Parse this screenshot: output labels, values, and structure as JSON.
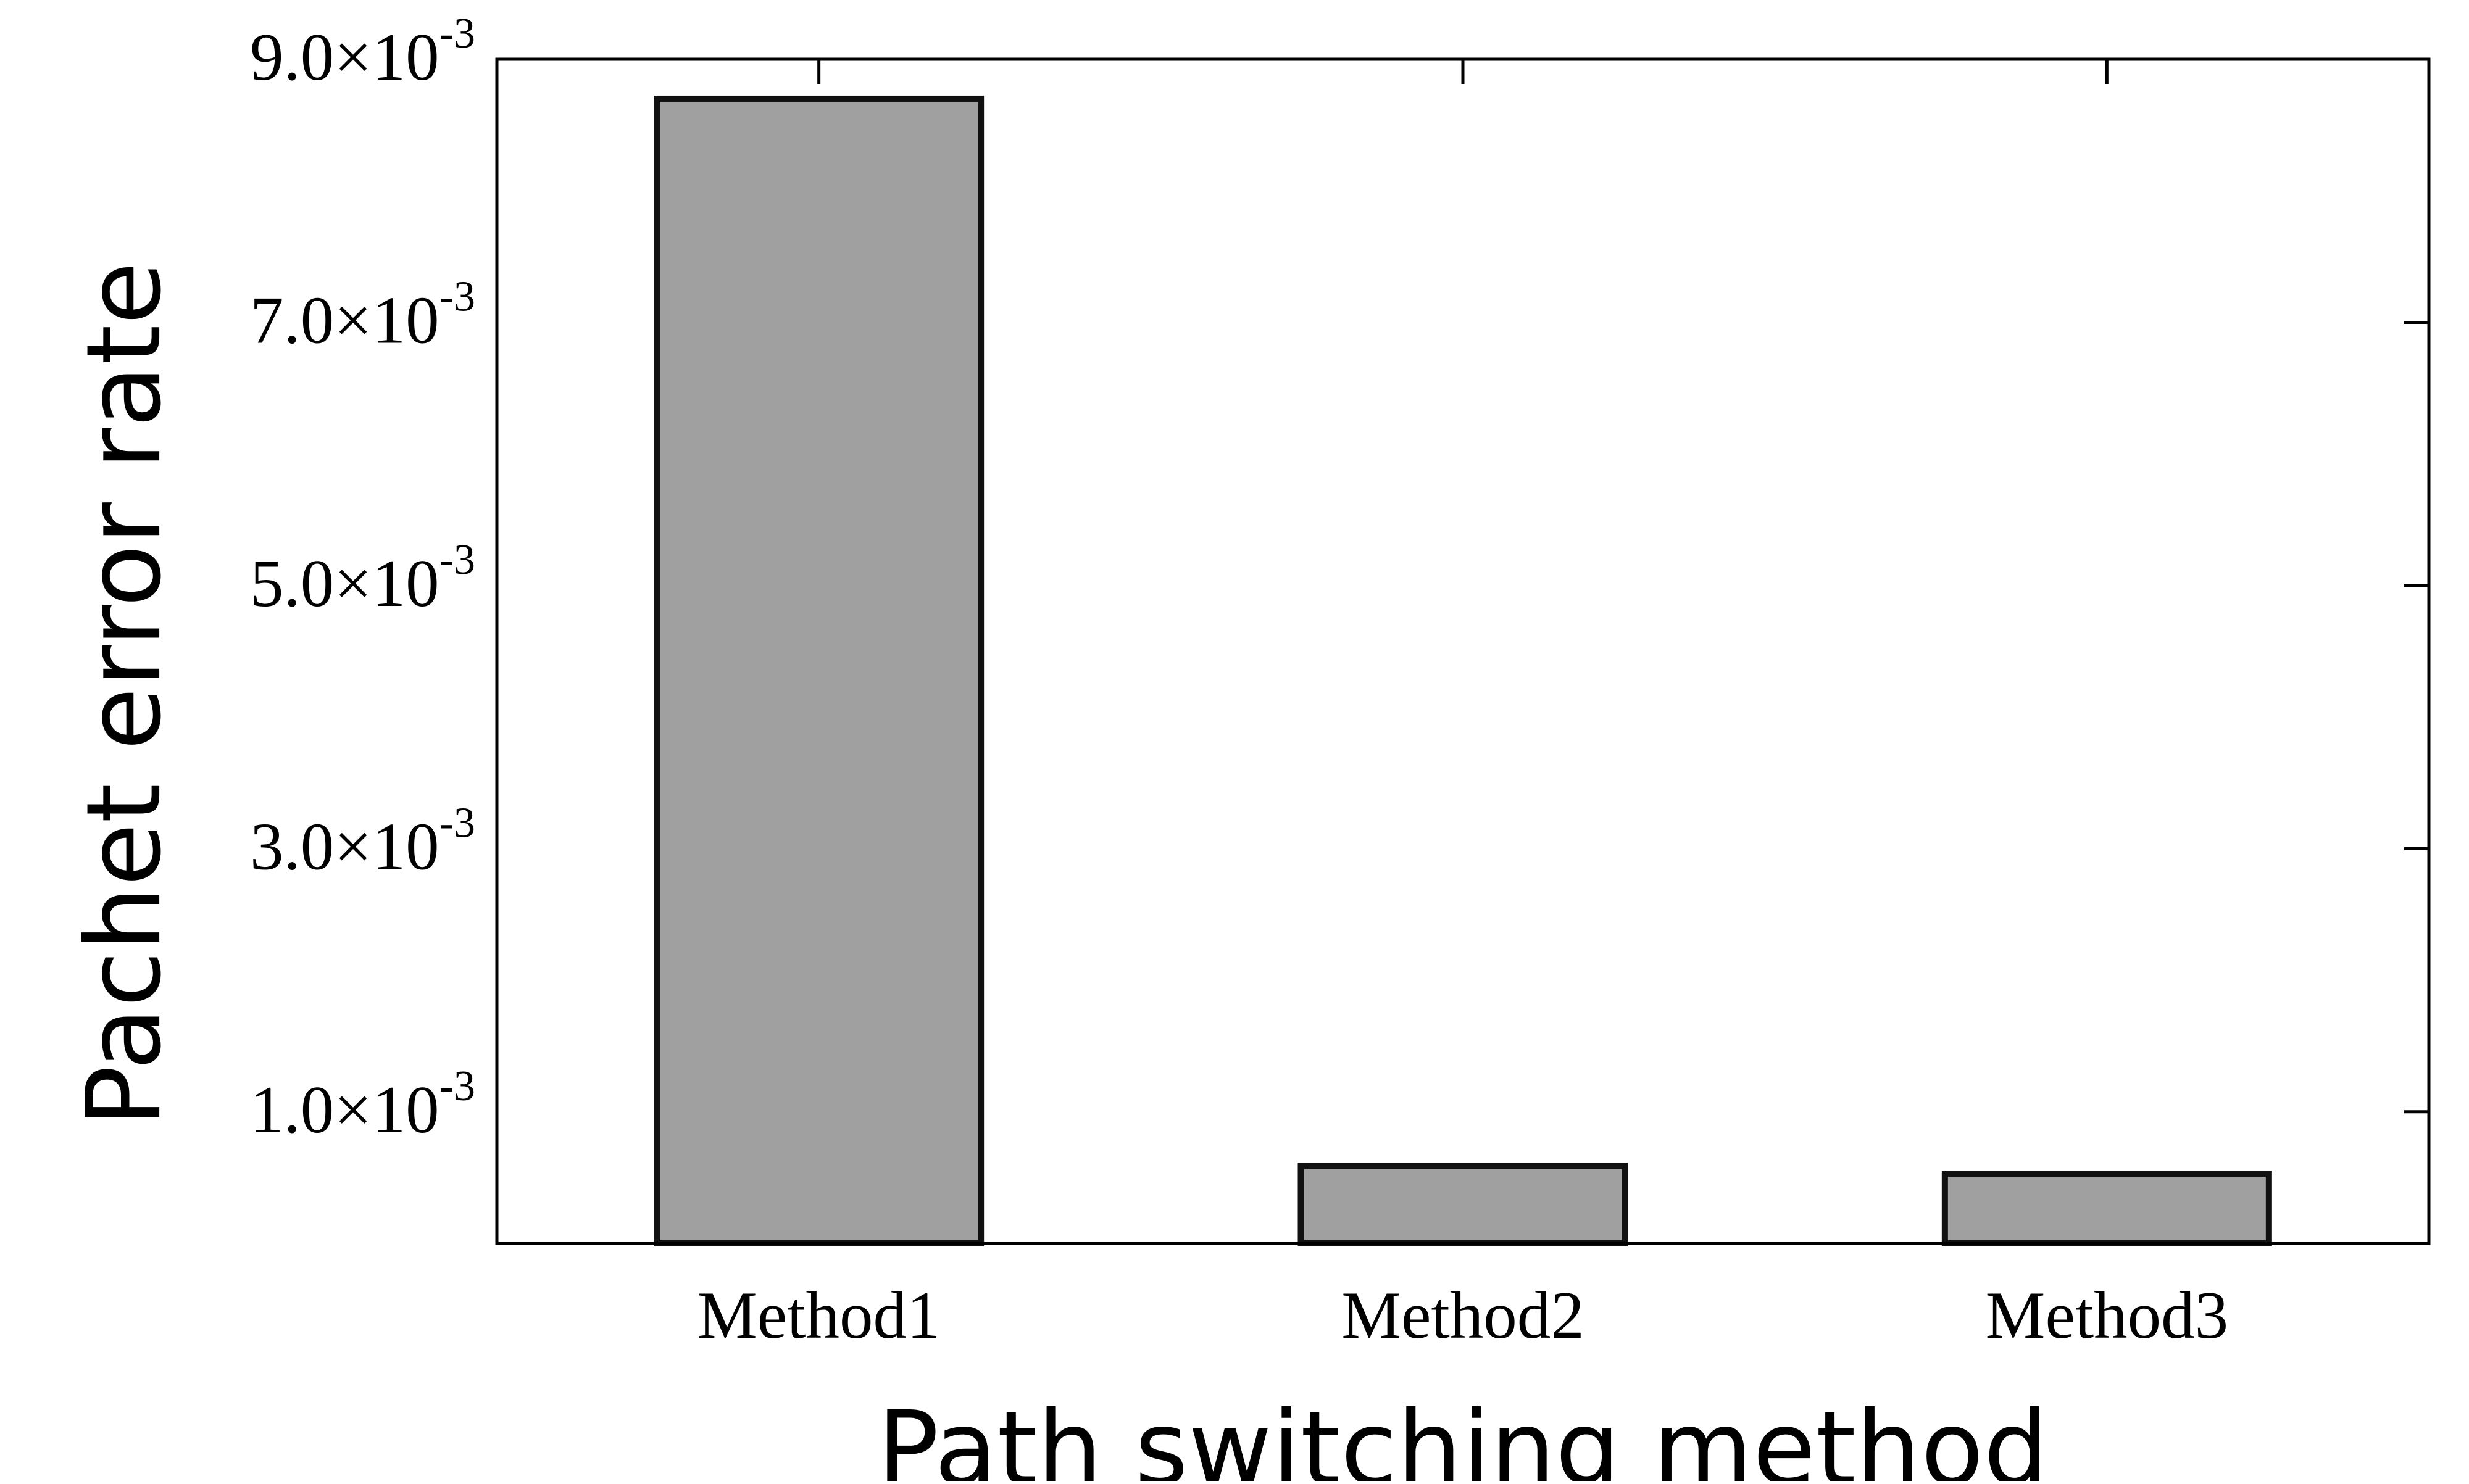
{
  "chart_data": {
    "type": "bar",
    "title": "",
    "xlabel": "Path switching method",
    "ylabel": "Pachet error rate",
    "categories": [
      "Method1",
      "Method2",
      "Method3"
    ],
    "series": [
      {
        "values": [
          0.0087,
          0.00059,
          0.00053
        ]
      }
    ],
    "ylim": [
      0,
      0.009
    ],
    "yticks": [
      {
        "value": 0.009,
        "mantissa": "9.0",
        "times": "×",
        "base": "10",
        "exponent": "-3"
      },
      {
        "value": 0.007,
        "mantissa": "7.0",
        "times": "×",
        "base": "10",
        "exponent": "-3"
      },
      {
        "value": 0.005,
        "mantissa": "5.0",
        "times": "×",
        "base": "10",
        "exponent": "-3"
      },
      {
        "value": 0.003,
        "mantissa": "3.0",
        "times": "×",
        "base": "10",
        "exponent": "-3"
      },
      {
        "value": 0.001,
        "mantissa": "1.0",
        "times": "×",
        "base": "10",
        "exponent": "-3"
      }
    ],
    "grid": false,
    "legend": "none",
    "colors": {
      "bar_fill": "#a0a0a0",
      "bar_stroke": "#111111",
      "axis": "#000000",
      "background": "#ffffff"
    }
  }
}
